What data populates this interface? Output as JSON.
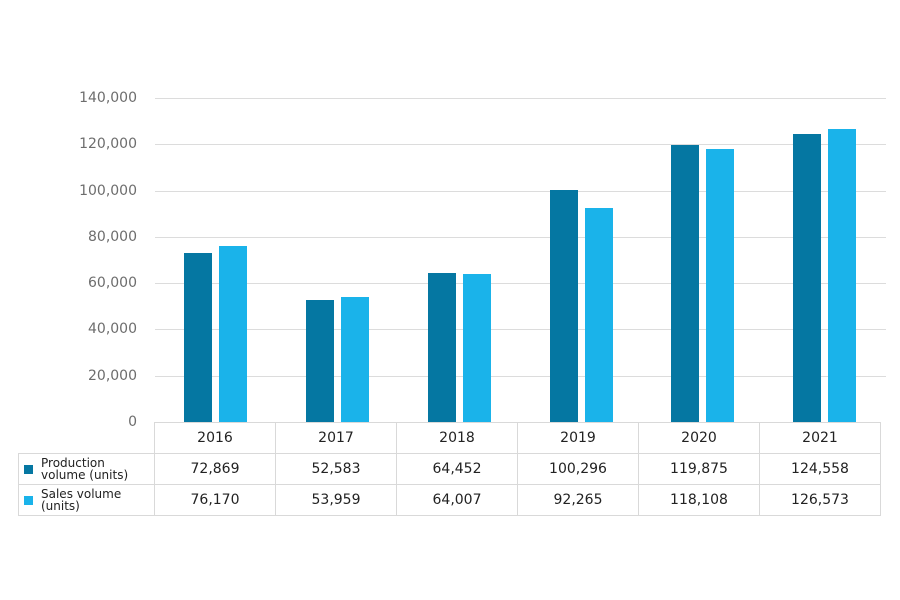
{
  "chart_data": {
    "type": "bar",
    "title": "",
    "xlabel": "",
    "ylabel": "",
    "ylim": [
      0,
      140000
    ],
    "yticks": [
      0,
      20000,
      40000,
      60000,
      80000,
      100000,
      120000,
      140000
    ],
    "ytick_labels": [
      "0",
      "20,000",
      "40,000",
      "60,000",
      "80,000",
      "100,000",
      "120,000",
      "140,000"
    ],
    "grid": true,
    "legend_position": "data-table",
    "categories": [
      "2016",
      "2017",
      "2018",
      "2019",
      "2020",
      "2021"
    ],
    "series": [
      {
        "name": "Production volume (units)",
        "label_line1": "Production",
        "label_line2": "volume (units)",
        "color": "#0577a2",
        "values": [
          72869,
          52583,
          64452,
          100296,
          119875,
          124558
        ],
        "value_labels": [
          "72,869",
          "52,583",
          "64,452",
          "100,296",
          "119,875",
          "124,558"
        ]
      },
      {
        "name": "Sales volume (units)",
        "label_line1": "Sales volume",
        "label_line2": "(units)",
        "color": "#1ab3ea",
        "values": [
          76170,
          53959,
          64007,
          92265,
          118108,
          126573
        ],
        "value_labels": [
          "76,170",
          "53,959",
          "64,007",
          "92,265",
          "118,108",
          "126,573"
        ]
      }
    ]
  }
}
